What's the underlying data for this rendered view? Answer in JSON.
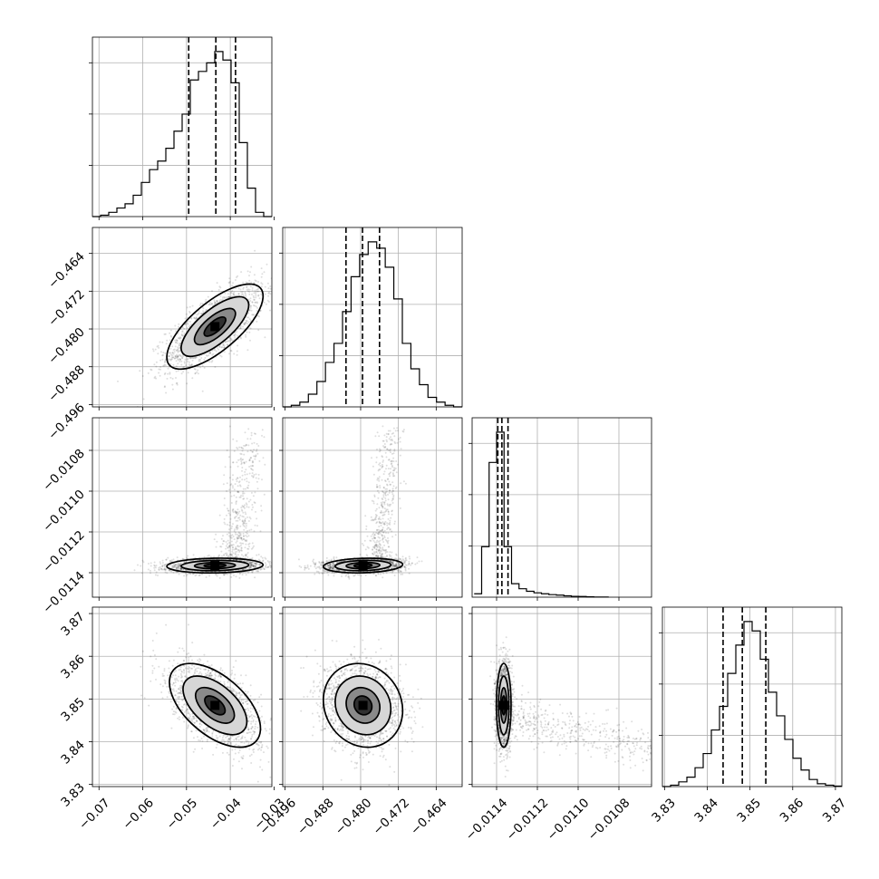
{
  "chart_data": {
    "type": "corner",
    "grid": true,
    "colors": {
      "samples": "#000000",
      "grid": "#b0b0b0",
      "frame": "#000000"
    },
    "parameters": [
      {
        "range": [
          -0.0715,
          -0.0305
        ],
        "ticks": [
          -0.07,
          -0.06,
          -0.05,
          -0.04,
          -0.03
        ],
        "tick_labels": [
          "−0.07",
          "−0.06",
          "−0.05",
          "−0.04",
          "−0.03"
        ],
        "center": -0.0435,
        "quantiles": [
          -0.0495,
          -0.0433,
          -0.0388
        ],
        "histogram": [
          0,
          0.5,
          1.5,
          3,
          4.5,
          7.5,
          12,
          16.5,
          19.5,
          24,
          30,
          36,
          48,
          51,
          54,
          58,
          55,
          47,
          26,
          10,
          1.5,
          0
        ]
      },
      {
        "range": [
          -0.4965,
          -0.4585
        ],
        "ticks": [
          -0.496,
          -0.488,
          -0.48,
          -0.472,
          -0.464
        ],
        "tick_labels": [
          "−0.496",
          "−0.488",
          "−0.480",
          "−0.472",
          "−0.464"
        ],
        "center": -0.4795,
        "quantiles": [
          -0.4831,
          -0.4796,
          -0.476
        ],
        "histogram": [
          0,
          0.5,
          1.5,
          4,
          8,
          14,
          20,
          30,
          41,
          48,
          52,
          50,
          44,
          34,
          20,
          12,
          7,
          3,
          1.5,
          0.5,
          0
        ]
      },
      {
        "range": [
          -0.01152,
          -0.01064
        ],
        "ticks": [
          -0.0114,
          -0.0112,
          -0.011,
          -0.0108
        ],
        "tick_labels": [
          "−0.0114",
          "−0.0112",
          "−0.0110",
          "−0.0108"
        ],
        "center": -0.011365,
        "quantiles": [
          -0.011394,
          -0.011374,
          -0.011344
        ],
        "histogram": [
          2,
          30,
          80,
          98,
          30,
          8,
          5,
          3.5,
          2.6,
          2,
          1.5,
          1.2,
          0.8,
          0.5,
          0.4,
          0.2,
          0.1,
          0.1
        ],
        "hist_start": -0.01151,
        "hist_end": -0.01085
      },
      {
        "range": [
          3.8295,
          3.8715
        ],
        "ticks": [
          3.83,
          3.84,
          3.85,
          3.86,
          3.87
        ],
        "tick_labels": [
          "3.83",
          "3.84",
          "3.85",
          "3.86",
          "3.87"
        ],
        "center": 3.8485,
        "quantiles": [
          3.8437,
          3.8482,
          3.8537
        ],
        "histogram": [
          0,
          0.3,
          1,
          2,
          4,
          7,
          12,
          17,
          24,
          30,
          35,
          33,
          27,
          20,
          15,
          10,
          6,
          3.5,
          1.5,
          0.6,
          0.3,
          0.1
        ]
      }
    ],
    "pairs": [
      {
        "x": 0,
        "y": 1,
        "rho": 0.72,
        "sx": 0.0055,
        "sy": 0.0045
      },
      {
        "x": 0,
        "y": 2,
        "rho": 0.1,
        "sx": 0.0055,
        "sy": 1.8e-05,
        "tail": "right-up"
      },
      {
        "x": 1,
        "y": 2,
        "rho": 0.15,
        "sx": 0.0042,
        "sy": 1.8e-05,
        "tail": "right-up"
      },
      {
        "x": 0,
        "y": 3,
        "rho": -0.55,
        "sx": 0.0052,
        "sy": 0.0049
      },
      {
        "x": 1,
        "y": 3,
        "rho": -0.12,
        "sx": 0.0042,
        "sy": 0.0049
      },
      {
        "x": 2,
        "y": 3,
        "rho": 0.0,
        "sx": 1.8e-05,
        "sy": 0.0049,
        "tail": "right"
      }
    ]
  }
}
